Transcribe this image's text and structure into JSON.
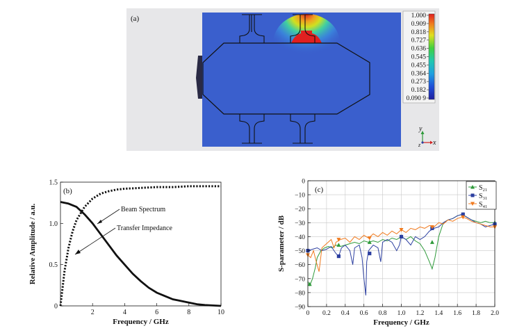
{
  "panel_a": {
    "label": "(a)",
    "colorbar_ticks": [
      "1.000",
      "0.909",
      "0.818",
      "0.727",
      "0.636",
      "0.545",
      "0.455",
      "0.364",
      "0.273",
      "0.182",
      "0.090 9"
    ],
    "axis_y": "y",
    "axis_z": "z",
    "axis_x": "x",
    "colors": {
      "background": "#3a5fcd",
      "outline": "#1a1a1a",
      "hot": "#e02020"
    }
  },
  "chart_data": [
    {
      "type": "line",
      "panel_label": "(b)",
      "title": "",
      "xlabel": "Frequency / GHz",
      "ylabel": "Relative Amplitude / a.u.",
      "xlim": [
        0,
        10
      ],
      "ylim": [
        0,
        1.5
      ],
      "xticks": [
        2,
        4,
        6,
        8,
        10
      ],
      "yticks": [
        0,
        0.5,
        1.0,
        1.5
      ],
      "xtick_labels": [
        "2",
        "4",
        "6",
        "8",
        "10"
      ],
      "ytick_labels": [
        "0",
        "0.5",
        "1.0",
        "1.5"
      ],
      "series": [
        {
          "name": "Beam Spectrum",
          "style": "solid",
          "x": [
            0,
            0.5,
            1,
            1.5,
            2,
            2.5,
            3,
            3.5,
            4,
            4.5,
            5,
            5.5,
            6,
            6.5,
            7,
            7.5,
            8,
            8.5,
            9,
            9.5,
            10
          ],
          "y": [
            1.26,
            1.24,
            1.2,
            1.11,
            1.0,
            0.87,
            0.74,
            0.61,
            0.5,
            0.39,
            0.3,
            0.22,
            0.16,
            0.12,
            0.08,
            0.06,
            0.04,
            0.02,
            0.01,
            0.005,
            0.0
          ]
        },
        {
          "name": "Transfer Impedance",
          "style": "dotted",
          "x": [
            0,
            0.25,
            0.5,
            0.75,
            1,
            1.5,
            2,
            2.5,
            3,
            3.5,
            4,
            5,
            6,
            7,
            8,
            9,
            10
          ],
          "y": [
            0.0,
            0.42,
            0.7,
            0.9,
            1.04,
            1.2,
            1.3,
            1.36,
            1.39,
            1.41,
            1.42,
            1.43,
            1.44,
            1.44,
            1.45,
            1.45,
            1.45
          ]
        }
      ],
      "annotations": [
        {
          "text": "Beam Spectrum",
          "target": "Beam Spectrum"
        },
        {
          "text": "Transfer Impedance",
          "target": "Transfer Impedance"
        }
      ]
    },
    {
      "type": "line",
      "panel_label": "(c)",
      "title": "",
      "xlabel": "Frequency / GHz",
      "ylabel": "S-parameter / dB",
      "xlim": [
        0,
        2.0
      ],
      "ylim": [
        -90,
        0
      ],
      "grid": true,
      "xticks": [
        0,
        0.2,
        0.4,
        0.6,
        0.8,
        1.0,
        1.2,
        1.4,
        1.6,
        1.8,
        2.0
      ],
      "yticks": [
        0,
        -10,
        -20,
        -30,
        -40,
        -50,
        -60,
        -70,
        -80,
        -90
      ],
      "xtick_labels": [
        "0",
        "0.2",
        "0.4",
        "0.6",
        "0.8",
        "1.0",
        "1.2",
        "1.4",
        "1.6",
        "1.8",
        "2.0"
      ],
      "ytick_labels": [
        "0",
        "−10",
        "−20",
        "−30",
        "−40",
        "−50",
        "−60",
        "−70",
        "−80",
        "−90"
      ],
      "legend_position": "top-right",
      "series": [
        {
          "name": "S21",
          "base": "S",
          "sub": "21",
          "color": "#2e9a3a",
          "marker": "triangle-up",
          "x": [
            0.0,
            0.02,
            0.05,
            0.08,
            0.1,
            0.14,
            0.18,
            0.22,
            0.26,
            0.3,
            0.35,
            0.4,
            0.45,
            0.5,
            0.55,
            0.6,
            0.65,
            0.7,
            0.75,
            0.8,
            0.85,
            0.9,
            0.95,
            1.0,
            1.05,
            1.1,
            1.15,
            1.2,
            1.25,
            1.3,
            1.33,
            1.36,
            1.4,
            1.45,
            1.5,
            1.55,
            1.6,
            1.65,
            1.7,
            1.75,
            1.8,
            1.85,
            1.9,
            1.95,
            2.0
          ],
          "y": [
            -72,
            -75,
            -70,
            -62,
            -55,
            -50,
            -48,
            -47,
            -48,
            -46,
            -47,
            -46,
            -45,
            -44,
            -45,
            -43,
            -44,
            -43,
            -44,
            -42,
            -43,
            -41,
            -42,
            -40,
            -42,
            -40,
            -43,
            -45,
            -50,
            -58,
            -63,
            -55,
            -40,
            -30,
            -28,
            -27,
            -25,
            -24,
            -26,
            -28,
            -29,
            -30,
            -29,
            -30,
            -30
          ],
          "marker_x": [
            0.02,
            0.33,
            0.66,
            1.0,
            1.33,
            1.66,
            2.0
          ],
          "marker_y": [
            -74,
            -46,
            -44,
            -40,
            -44,
            -24,
            -30
          ]
        },
        {
          "name": "S31",
          "base": "S",
          "sub": "31",
          "color": "#2c3fa0",
          "marker": "square",
          "x": [
            0.0,
            0.05,
            0.1,
            0.15,
            0.2,
            0.25,
            0.3,
            0.33,
            0.36,
            0.4,
            0.45,
            0.48,
            0.5,
            0.55,
            0.58,
            0.6,
            0.62,
            0.63,
            0.65,
            0.7,
            0.75,
            0.78,
            0.8,
            0.85,
            0.9,
            0.95,
            0.98,
            1.0,
            1.05,
            1.1,
            1.15,
            1.2,
            1.25,
            1.3,
            1.35,
            1.4,
            1.45,
            1.5,
            1.55,
            1.6,
            1.65,
            1.7,
            1.75,
            1.8,
            1.85,
            1.9,
            1.95,
            2.0
          ],
          "y": [
            -50,
            -49,
            -48,
            -50,
            -49,
            -47,
            -52,
            -54,
            -48,
            -46,
            -50,
            -60,
            -48,
            -46,
            -55,
            -70,
            -82,
            -58,
            -50,
            -46,
            -48,
            -58,
            -44,
            -42,
            -44,
            -50,
            -46,
            -40,
            -42,
            -46,
            -40,
            -42,
            -40,
            -36,
            -34,
            -33,
            -30,
            -28,
            -27,
            -25,
            -24,
            -26,
            -28,
            -30,
            -31,
            -33,
            -32,
            -31
          ],
          "marker_x": [
            0.0,
            0.33,
            0.66,
            1.0,
            1.33,
            1.66,
            2.0
          ],
          "marker_y": [
            -50,
            -54,
            -52,
            -40,
            -34,
            -24,
            -31
          ]
        },
        {
          "name": "S41",
          "base": "S",
          "sub": "41",
          "color": "#f07a1e",
          "marker": "triangle-down",
          "x": [
            0.0,
            0.03,
            0.06,
            0.09,
            0.12,
            0.15,
            0.2,
            0.25,
            0.28,
            0.3,
            0.35,
            0.4,
            0.45,
            0.5,
            0.55,
            0.6,
            0.65,
            0.7,
            0.75,
            0.8,
            0.85,
            0.9,
            0.95,
            1.0,
            1.05,
            1.1,
            1.15,
            1.2,
            1.25,
            1.3,
            1.35,
            1.4,
            1.45,
            1.5,
            1.55,
            1.6,
            1.65,
            1.7,
            1.75,
            1.8,
            1.85,
            1.9,
            1.95,
            2.0
          ],
          "y": [
            -53,
            -55,
            -50,
            -58,
            -65,
            -48,
            -45,
            -42,
            -48,
            -44,
            -42,
            -41,
            -44,
            -40,
            -42,
            -39,
            -41,
            -38,
            -40,
            -37,
            -39,
            -36,
            -38,
            -35,
            -37,
            -34,
            -35,
            -33,
            -34,
            -32,
            -33,
            -30,
            -31,
            -28,
            -29,
            -27,
            -26,
            -27,
            -29,
            -30,
            -31,
            -32,
            -33,
            -33
          ],
          "marker_x": [
            0.0,
            0.33,
            0.66,
            1.0,
            1.33,
            1.66,
            2.0
          ],
          "marker_y": [
            -53,
            -42,
            -41,
            -35,
            -33,
            -26,
            -33
          ]
        }
      ]
    }
  ]
}
